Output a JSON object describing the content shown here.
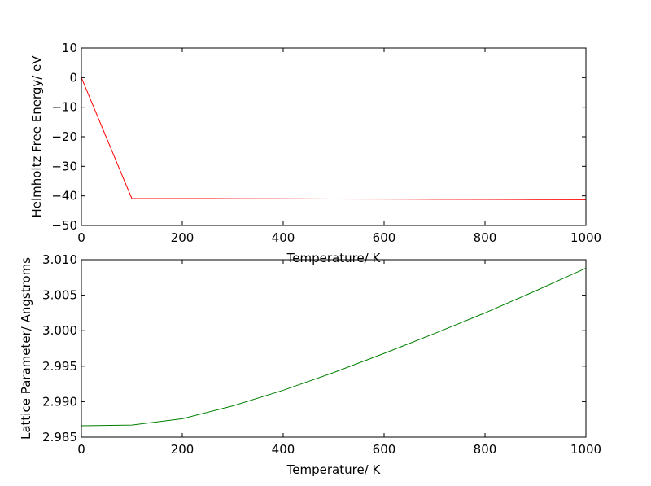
{
  "chart_data": [
    {
      "type": "line",
      "xlabel": "Temperature/ K",
      "ylabel": "Helmholtz Free Energy/ eV",
      "xlim": [
        0,
        1000
      ],
      "ylim": [
        -50,
        10
      ],
      "xticks": [
        0,
        200,
        400,
        600,
        800,
        1000
      ],
      "yticks": [
        10,
        0,
        -10,
        -20,
        -30,
        -40,
        -50
      ],
      "xtick_labels": [
        "0",
        "200",
        "400",
        "600",
        "800",
        "1000"
      ],
      "ytick_labels": [
        "10",
        "0",
        "−10",
        "−20",
        "−30",
        "−40",
        "−50"
      ],
      "grid": false,
      "series": [
        {
          "color": "#ff0000",
          "x": [
            0,
            100,
            200,
            300,
            400,
            500,
            600,
            700,
            800,
            900,
            1000
          ],
          "y": [
            0,
            -40.9,
            -40.9,
            -40.95,
            -41.0,
            -41.05,
            -41.1,
            -41.15,
            -41.2,
            -41.25,
            -41.3
          ]
        }
      ]
    },
    {
      "type": "line",
      "xlabel": "Temperature/ K",
      "ylabel": "Lattice Parameter/ Angstroms",
      "xlim": [
        0,
        1000
      ],
      "ylim": [
        2.985,
        3.01
      ],
      "xticks": [
        0,
        200,
        400,
        600,
        800,
        1000
      ],
      "yticks": [
        3.01,
        3.005,
        3.0,
        2.995,
        2.99,
        2.985
      ],
      "xtick_labels": [
        "0",
        "200",
        "400",
        "600",
        "800",
        "1000"
      ],
      "ytick_labels": [
        "3.010",
        "3.005",
        "3.000",
        "2.995",
        "2.990",
        "2.985"
      ],
      "grid": false,
      "series": [
        {
          "color": "#008000",
          "x": [
            0,
            100,
            200,
            300,
            400,
            500,
            600,
            700,
            800,
            900,
            1000
          ],
          "y": [
            2.9866,
            2.9867,
            2.9876,
            2.9894,
            2.9916,
            2.9941,
            2.9968,
            2.9996,
            3.0025,
            3.0056,
            3.0088
          ]
        }
      ]
    }
  ]
}
